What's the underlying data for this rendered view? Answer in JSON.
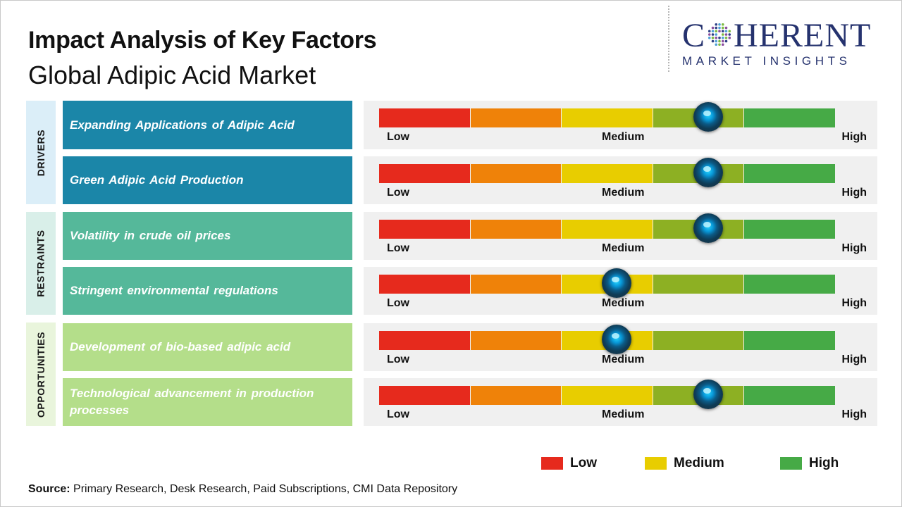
{
  "title": "Impact Analysis of Key Factors",
  "subtitle": "Global Adipic Acid Market",
  "logo": {
    "word_start": "C",
    "word_end": "HERENT",
    "tagline": "MARKET INSIGHTS",
    "color": "#25326e"
  },
  "categories": [
    {
      "label": "DRIVERS",
      "color": "#dbeef8"
    },
    {
      "label": "RESTRAINTS",
      "color": "#d9efe9"
    },
    {
      "label": "OPPORTUNITIES",
      "color": "#e9f5dc"
    }
  ],
  "factors": [
    {
      "category": "DRIVERS",
      "label": "Expanding Applications of Adipic Acid",
      "impact": 0.72,
      "color": "#1b86a8"
    },
    {
      "category": "DRIVERS",
      "label": "Green Adipic Acid Production",
      "impact": 0.72,
      "color": "#1b86a8"
    },
    {
      "category": "RESTRAINTS",
      "label": "Volatility  in crude oil prices",
      "impact": 0.72,
      "color": "#55b89a"
    },
    {
      "category": "RESTRAINTS",
      "label": "Stringent  environmental  regulations",
      "impact": 0.52,
      "color": "#55b89a"
    },
    {
      "category": "OPPORTUNITIES",
      "label": "Development  of bio-based  adipic acid",
      "impact": 0.52,
      "color": "#b4de8a"
    },
    {
      "category": "OPPORTUNITIES",
      "label": "Technological  advancement  in production processes",
      "impact": 0.72,
      "color": "#b4de8a"
    }
  ],
  "scale": {
    "low": "Low",
    "medium": "Medium",
    "high": "High",
    "segment_colors": [
      "#e62a1d",
      "#ef8209",
      "#e8cd00",
      "#8db023",
      "#46aa46"
    ]
  },
  "legend": [
    {
      "label": "Low",
      "color": "#e62a1d"
    },
    {
      "label": "Medium",
      "color": "#e8cd00"
    },
    {
      "label": "High",
      "color": "#46aa46"
    }
  ],
  "source": {
    "label": "Source:",
    "text": " Primary Research, Desk Research, Paid Subscriptions, CMI Data Repository"
  }
}
